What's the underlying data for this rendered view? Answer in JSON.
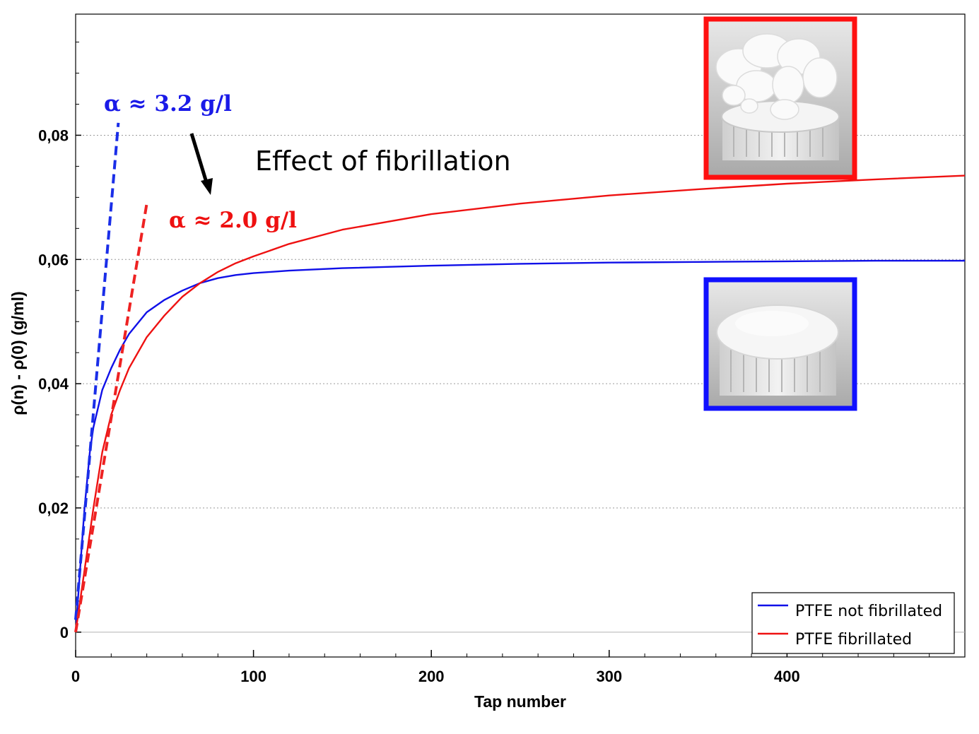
{
  "chart_data": {
    "type": "line",
    "xlabel": "Tap number",
    "ylabel": "ρ(n) - ρ(0) (g/ml)",
    "xlim": [
      0,
      500
    ],
    "ylim": [
      -0.004,
      0.0995
    ],
    "x_ticks": [
      {
        "value": 0,
        "label": "0"
      },
      {
        "value": 100,
        "label": "100"
      },
      {
        "value": 200,
        "label": "200"
      },
      {
        "value": 300,
        "label": "300"
      },
      {
        "value": 400,
        "label": "400"
      }
    ],
    "y_ticks": [
      {
        "value": 0,
        "label": "0"
      },
      {
        "value": 0.02,
        "label": "0,02"
      },
      {
        "value": 0.04,
        "label": "0,04"
      },
      {
        "value": 0.06,
        "label": "0,06"
      },
      {
        "value": 0.08,
        "label": "0,08"
      }
    ],
    "grid": "horizontal dotted",
    "legend_position": "bottom-right",
    "series": [
      {
        "name": "PTFE not fibrillated",
        "color": "#1010e8",
        "x": [
          0,
          1,
          2,
          3,
          5,
          8,
          10,
          15,
          20,
          25,
          30,
          40,
          50,
          60,
          70,
          80,
          90,
          100,
          120,
          150,
          200,
          250,
          300,
          350,
          400,
          450,
          500
        ],
        "y": [
          0,
          0.004,
          0.008,
          0.012,
          0.02,
          0.029,
          0.033,
          0.039,
          0.0425,
          0.0455,
          0.048,
          0.0515,
          0.0535,
          0.055,
          0.0562,
          0.057,
          0.0575,
          0.0578,
          0.0582,
          0.0586,
          0.059,
          0.0593,
          0.0595,
          0.0596,
          0.0597,
          0.0598,
          0.0598
        ]
      },
      {
        "name": "PTFE fibrillated",
        "color": "#ee1111",
        "x": [
          0,
          2,
          5,
          10,
          15,
          20,
          25,
          30,
          40,
          50,
          60,
          70,
          80,
          90,
          100,
          120,
          150,
          200,
          250,
          300,
          350,
          400,
          450,
          500
        ],
        "y": [
          0,
          0.004,
          0.01,
          0.02,
          0.029,
          0.035,
          0.039,
          0.0425,
          0.0475,
          0.051,
          0.054,
          0.0562,
          0.058,
          0.0594,
          0.0605,
          0.0625,
          0.0648,
          0.0673,
          0.069,
          0.0703,
          0.0713,
          0.0722,
          0.0729,
          0.0735
        ]
      }
    ],
    "slope_lines": [
      {
        "color": "#1a2ee8",
        "x": [
          0,
          24
        ],
        "y": [
          0.002,
          0.082
        ]
      },
      {
        "color": "#ee2222",
        "x": [
          0,
          40
        ],
        "y": [
          0,
          0.069
        ]
      }
    ],
    "annotations": {
      "alpha_blue": "α ≈ 3.2 g/l",
      "alpha_red": "α ≈ 2.0 g/l",
      "effect": "Effect of fibrillation",
      "alpha_blue_color": "#1a1ae8",
      "alpha_red_color": "#ee1111"
    },
    "inset_images": [
      {
        "subject": "fibrillated PTFE powder on container lid",
        "border_color": "#ff1010"
      },
      {
        "subject": "non-fibrillated PTFE powder on container lid",
        "border_color": "#1010ff"
      }
    ]
  }
}
